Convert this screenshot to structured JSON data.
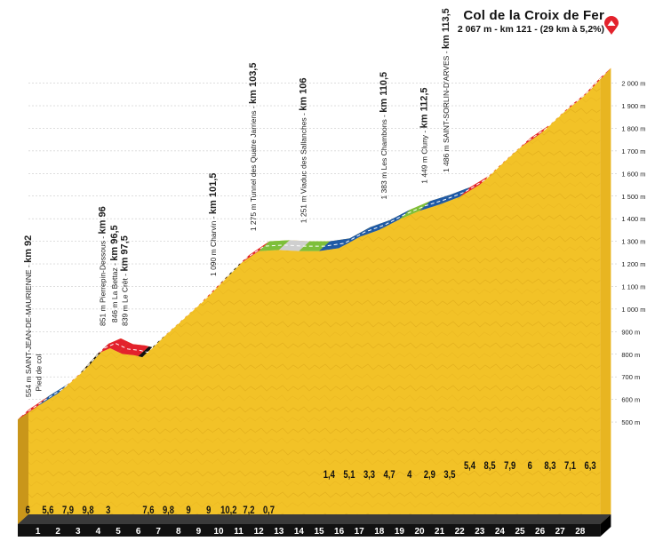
{
  "header": {
    "title": "Col de la Croix de Fer",
    "subtitle": "2 067 m - km 121 - (29 km à 5,2%)",
    "summit_icon": "summit-flag-icon"
  },
  "colors": {
    "fill": "#f2c227",
    "black_band": "#111111",
    "red": "#e3222c",
    "blue": "#1f5aa6",
    "green": "#7dbf3a",
    "gray": "#cfcfcf"
  },
  "chart_data": {
    "type": "area",
    "title": "Col de la Croix de Fer",
    "xlabel": "",
    "ylabel": "",
    "ylim": [
      454,
      2100
    ],
    "y_ticks": [
      "500 m",
      "600 m",
      "700 m",
      "800 m",
      "900 m",
      "1 000 m",
      "1 100 m",
      "1 200 m",
      "1 300 m",
      "1 400 m",
      "1 500 m",
      "1 600 m",
      "1 700 m",
      "1 800 m",
      "1 900 m",
      "2 000 m"
    ],
    "x_ticks": [
      "1",
      "2",
      "3",
      "4",
      "5",
      "6",
      "7",
      "8",
      "9",
      "10",
      "11",
      "12",
      "13",
      "14",
      "15",
      "16",
      "17",
      "18",
      "19",
      "20",
      "21",
      "22",
      "23",
      "24",
      "25",
      "26",
      "27",
      "28"
    ],
    "segments": [
      {
        "km": 1,
        "gradient": "6",
        "color": "red"
      },
      {
        "km": 2,
        "gradient": "5,6",
        "color": "blue"
      },
      {
        "km": 3,
        "gradient": "7,9",
        "color": "red"
      },
      {
        "km": 4,
        "gradient": "9,8",
        "color": "black"
      },
      {
        "km": 5,
        "gradient": "3",
        "color": "red"
      },
      {
        "km": 6,
        "gradient": "",
        "color": "red"
      },
      {
        "km": 7,
        "gradient": "7,6",
        "color": "black"
      },
      {
        "km": 8,
        "gradient": "9,8",
        "color": "red"
      },
      {
        "km": 9,
        "gradient": "9",
        "color": "red"
      },
      {
        "km": 10,
        "gradient": "9",
        "color": "red"
      },
      {
        "km": 11,
        "gradient": "10,2",
        "color": "black"
      },
      {
        "km": 12,
        "gradient": "7,2",
        "color": "red"
      },
      {
        "km": 13,
        "gradient": "0,7",
        "color": "green"
      },
      {
        "km": 14,
        "gradient": "",
        "color": "gray"
      },
      {
        "km": 15,
        "gradient": "",
        "color": "green"
      },
      {
        "km": 16,
        "gradient": "1,4",
        "color": "blue"
      },
      {
        "km": 17,
        "gradient": "5,1",
        "color": "blue"
      },
      {
        "km": 18,
        "gradient": "3,3",
        "color": "blue"
      },
      {
        "km": 19,
        "gradient": "4,7",
        "color": "blue"
      },
      {
        "km": 20,
        "gradient": "4",
        "color": "green"
      },
      {
        "km": 21,
        "gradient": "2,9",
        "color": "blue"
      },
      {
        "km": 22,
        "gradient": "3,5",
        "color": "blue"
      },
      {
        "km": 23,
        "gradient": "5,4",
        "color": "red"
      },
      {
        "km": 24,
        "gradient": "8,5",
        "color": "red"
      },
      {
        "km": 25,
        "gradient": "7,9",
        "color": "red"
      },
      {
        "km": 26,
        "gradient": "6",
        "color": "red"
      },
      {
        "km": 27,
        "gradient": "8,3",
        "color": "red"
      },
      {
        "km": 28,
        "gradient": "7,1",
        "color": "red"
      },
      {
        "km": 29,
        "gradient": "6,3",
        "color": "red"
      }
    ],
    "profile": [
      {
        "km": 0,
        "alt": 554
      },
      {
        "km": 1,
        "alt": 614
      },
      {
        "km": 2,
        "alt": 670
      },
      {
        "km": 3,
        "alt": 749
      },
      {
        "km": 4,
        "alt": 847
      },
      {
        "km": 4.6,
        "alt": 870
      },
      {
        "km": 5.2,
        "alt": 845
      },
      {
        "km": 5.8,
        "alt": 839
      },
      {
        "km": 6.2,
        "alt": 830
      },
      {
        "km": 7,
        "alt": 900
      },
      {
        "km": 8,
        "alt": 980
      },
      {
        "km": 9,
        "alt": 1060
      },
      {
        "km": 10,
        "alt": 1150
      },
      {
        "km": 11,
        "alt": 1240
      },
      {
        "km": 12,
        "alt": 1300
      },
      {
        "km": 13,
        "alt": 1305
      },
      {
        "km": 14,
        "alt": 1300
      },
      {
        "km": 15,
        "alt": 1300
      },
      {
        "km": 16,
        "alt": 1313
      },
      {
        "km": 17,
        "alt": 1362
      },
      {
        "km": 18,
        "alt": 1394
      },
      {
        "km": 19,
        "alt": 1440
      },
      {
        "km": 20,
        "alt": 1478
      },
      {
        "km": 21,
        "alt": 1506
      },
      {
        "km": 22,
        "alt": 1540
      },
      {
        "km": 23,
        "alt": 1594
      },
      {
        "km": 24,
        "alt": 1679
      },
      {
        "km": 25,
        "alt": 1758
      },
      {
        "km": 26,
        "alt": 1818
      },
      {
        "km": 27,
        "alt": 1901
      },
      {
        "km": 28,
        "alt": 1972
      },
      {
        "km": 29,
        "alt": 2067
      }
    ],
    "annotations": [
      {
        "text": "554 m SAINT-JEAN-DE-MAURIENNE - ",
        "km_label": "km 92",
        "x": 0.4,
        "alt": 555
      },
      {
        "text": "Pied de col",
        "km_label": "",
        "x": 0.9,
        "alt": 580
      },
      {
        "text": "851 m Pierrepin-Dessous - ",
        "km_label": "km 96",
        "x": 4.1,
        "alt": 870
      },
      {
        "text": "846 m La Bettaz - ",
        "km_label": "km 96,5",
        "x": 4.7,
        "alt": 885
      },
      {
        "text": "839 m Le Crêt - ",
        "km_label": "km 97,5",
        "x": 5.2,
        "alt": 870
      },
      {
        "text": "1 090 m Charvin - ",
        "km_label": "km 101,5",
        "x": 9.6,
        "alt": 1090
      },
      {
        "text": "1 275 m Tunnel des Quatre Jarriens - ",
        "km_label": "km 103,5",
        "x": 11.6,
        "alt": 1290
      },
      {
        "text": "1 251 m Viaduc des Sallanches - ",
        "km_label": "km 106",
        "x": 14.1,
        "alt": 1325
      },
      {
        "text": "1 383 m Les Chambons - ",
        "km_label": "km 110,5",
        "x": 18.1,
        "alt": 1430
      },
      {
        "text": "1 449 m Cluny - ",
        "km_label": "km 112,5",
        "x": 20.1,
        "alt": 1500
      },
      {
        "text": "1 486 m SAINT-SORLIN-D'ARVES - ",
        "km_label": "km 113,5",
        "x": 21.2,
        "alt": 1550
      }
    ]
  }
}
